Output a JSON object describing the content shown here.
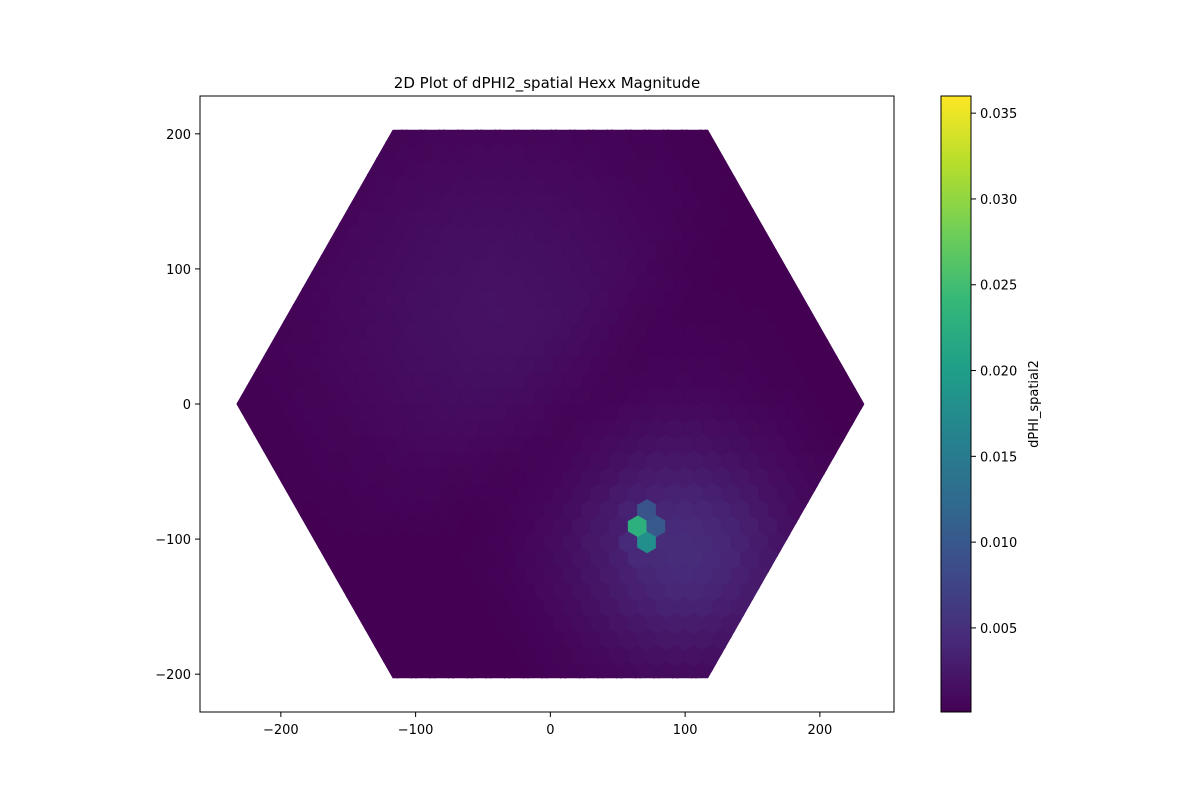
{
  "chart_data": {
    "type": "heatmap",
    "subtype": "hexbin-like spatial map (hexagonal detector outline)",
    "title": "2D Plot of dPHI2_spatial Hexx Magnitude",
    "xlabel": "",
    "ylabel": "",
    "xlim": [
      -260,
      255
    ],
    "ylim": [
      -228,
      228
    ],
    "xticks": [
      -200,
      -100,
      0,
      100,
      200
    ],
    "yticks": [
      -200,
      -100,
      0,
      100,
      200
    ],
    "colormap": "viridis",
    "colorbar": {
      "label": "dPHI_spatial2",
      "range": [
        0.0001,
        0.036
      ],
      "ticks": [
        0.005,
        0.01,
        0.015,
        0.02,
        0.025,
        0.03,
        0.035
      ],
      "tick_labels": [
        "0.005",
        "0.010",
        "0.015",
        "0.020",
        "0.025",
        "0.030",
        "0.035"
      ]
    },
    "outline": {
      "shape": "hexagon",
      "corners": [
        [
          233,
          0
        ],
        [
          117,
          -203
        ],
        [
          -117,
          -203
        ],
        [
          -233,
          0
        ],
        [
          -117,
          203
        ],
        [
          117,
          203
        ]
      ]
    },
    "features": [
      {
        "type": "peak",
        "x": 70,
        "y": -92,
        "value": 0.036
      },
      {
        "type": "broad_lobe",
        "x": 100,
        "y": -110,
        "value": 0.0045
      },
      {
        "type": "broad_lobe",
        "x": -40,
        "y": 70,
        "value": 0.0018
      }
    ],
    "grid": false,
    "legend": "none"
  },
  "colors": {
    "viridis": [
      "#440154",
      "#482878",
      "#3e4989",
      "#31688e",
      "#26828e",
      "#1f9e89",
      "#35b779",
      "#6ece58",
      "#b5de2b",
      "#fde725"
    ]
  }
}
